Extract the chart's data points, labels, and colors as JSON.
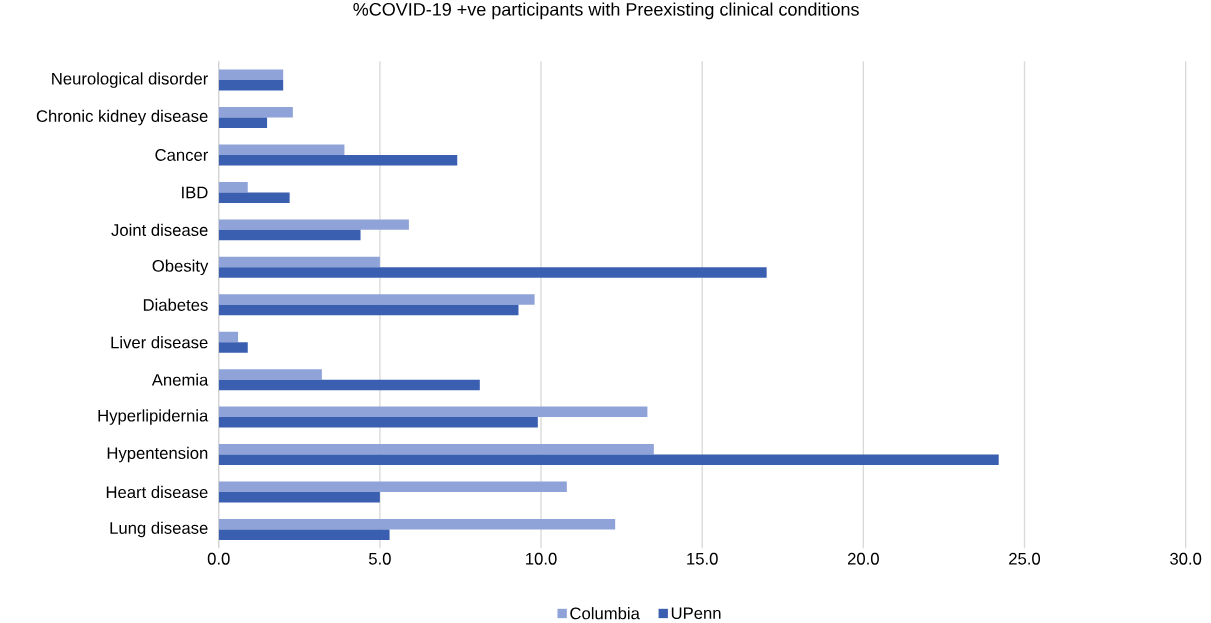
{
  "chart_data": {
    "type": "bar",
    "orientation": "horizontal",
    "title": "%COVID-19 +ve participants with Preexisting clinical conditions",
    "categories": [
      "Neurological disorder",
      "Chronic kidney disease",
      "Cancer",
      "IBD",
      "Joint disease",
      "Obesity",
      "Diabetes",
      "Liver disease",
      "Anemia",
      "Hyperlipidernia",
      "Hypentension",
      "Heart disease",
      "Lung disease"
    ],
    "series": [
      {
        "name": "Columbia",
        "color": "#8fa3d8",
        "values": [
          2.0,
          2.3,
          3.9,
          0.9,
          5.9,
          5.0,
          9.8,
          0.6,
          3.2,
          13.3,
          13.5,
          10.8,
          12.3
        ]
      },
      {
        "name": "UPenn",
        "color": "#3a5fb0",
        "values": [
          2.0,
          1.5,
          7.4,
          2.2,
          4.4,
          17.0,
          9.3,
          0.9,
          8.1,
          9.9,
          24.2,
          5.0,
          5.3
        ]
      }
    ],
    "xlim": [
      0,
      30
    ],
    "xticks": [
      {
        "value": 0,
        "label": "0.0"
      },
      {
        "value": 5,
        "label": "5.0"
      },
      {
        "value": 10,
        "label": "10.0"
      },
      {
        "value": 15,
        "label": "15.0"
      },
      {
        "value": 20,
        "label": "20.0"
      },
      {
        "value": 25,
        "label": "25.0"
      },
      {
        "value": 30,
        "label": "30.0"
      }
    ],
    "grid": "x",
    "legend": "bottom"
  }
}
